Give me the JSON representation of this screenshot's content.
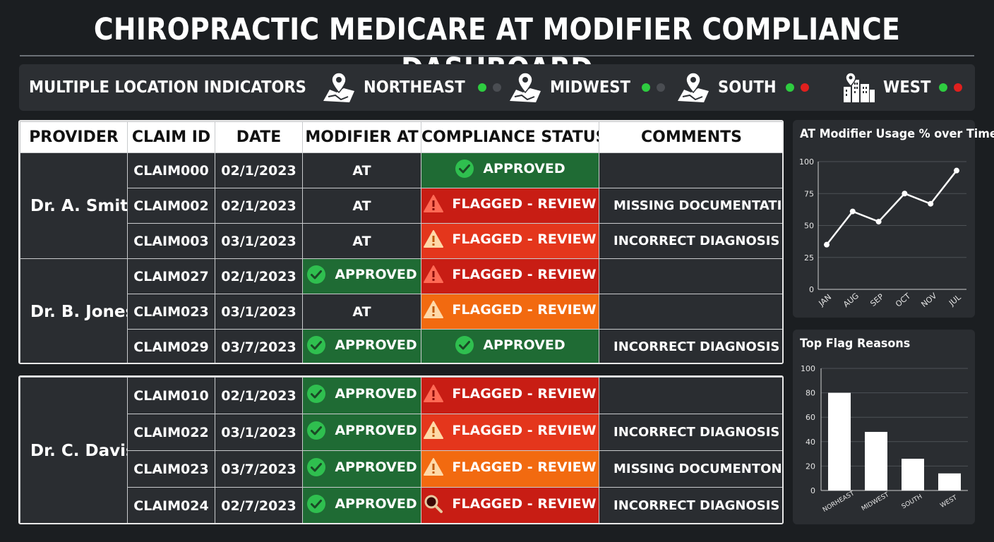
{
  "title": "CHIROPRACTIC MEDICARE AT MODIFIER COMPLIANCE DASHBOARD",
  "locations": {
    "label": "MULTIPLE LOCATION INDICATORS",
    "items": [
      {
        "name": "NORTHEAST",
        "icon": "map-pin-icon",
        "dots": [
          "#2ecc40",
          "#4a4d52"
        ]
      },
      {
        "name": "MIDWEST",
        "icon": "map-road-pin-icon",
        "dots": [
          "#2ecc40",
          "#4a4d52"
        ]
      },
      {
        "name": "SOUTH",
        "icon": "map-pin-icon",
        "dots": [
          "#2ecc40",
          "#e0201e"
        ]
      },
      {
        "name": "WEST",
        "icon": "city-buildings-icon",
        "dots": [
          "#2ecc40",
          "#e0201e"
        ]
      }
    ]
  },
  "table": {
    "headers": [
      "PROVIDER",
      "CLAIM ID",
      "DATE",
      "MODIFIER AT",
      "COMPLIANCE STATUS",
      "COMMENTS"
    ],
    "approved_label": "APPROVED",
    "flag_label": "FLAGGED - REVIEW",
    "groups": [
      {
        "provider": "Dr. A. Smith",
        "rows": [
          {
            "claim": "CLAIM000",
            "date": "02/1/2023",
            "modifier": "AT",
            "status": "approved",
            "comment": ""
          },
          {
            "claim": "CLAIM002",
            "date": "02/1/2023",
            "modifier": "AT",
            "status": "flag-red",
            "comment": "MISSING DOCUMENTATION"
          },
          {
            "claim": "CLAIM003",
            "date": "03/1/2023",
            "modifier": "AT",
            "status": "flag-redorange",
            "comment": "INCORRECT DIAGNOSIS CODE"
          }
        ]
      },
      {
        "provider": "Dr. B. Jones",
        "rows": [
          {
            "claim": "CLAIM027",
            "date": "02/1/2023",
            "modifier": "APPROVED",
            "status": "flag-red",
            "comment": ""
          },
          {
            "claim": "CLAIM023",
            "date": "03/1/2023",
            "modifier": "AT",
            "status": "flag-orange",
            "comment": ""
          },
          {
            "claim": "CLAIM029",
            "date": "03/7/2023",
            "modifier": "APPROVED",
            "status": "approved",
            "comment": "INCORRECT DIAGNOSIS CODE"
          }
        ]
      },
      {
        "provider": "Dr. C. Davis",
        "rows": [
          {
            "claim": "CLAIM010",
            "date": "02/1/2023",
            "modifier": "APPROVED",
            "status": "flag-red",
            "comment": ""
          },
          {
            "claim": "CLAIM022",
            "date": "03/1/2023",
            "modifier": "APPROVED",
            "status": "flag-redorange",
            "comment": "INCORRECT DIAGNOSIS CODE"
          },
          {
            "claim": "CLAIM023",
            "date": "03/7/2023",
            "modifier": "APPROVED",
            "status": "flag-orange",
            "comment": "MISSING DOCUMENTON"
          },
          {
            "claim": "CLAIM024",
            "date": "02/7/2023",
            "modifier": "APPROVED",
            "status": "flag-search",
            "comment": "INCORRECT DIAGNOSIS CODE"
          }
        ]
      }
    ]
  },
  "colors": {
    "approved": "#1f6b34",
    "flag_red": "#c81d14",
    "flag_orange": "#f26a10",
    "check_green": "#2fbf4f"
  },
  "chart_data": [
    {
      "type": "line",
      "title": "AT Modifier Usage % over Time",
      "categories": [
        "JAN",
        "AUG",
        "SEP",
        "OCT",
        "NOV",
        "JUL"
      ],
      "values": [
        35,
        61,
        53,
        75,
        67,
        93
      ],
      "ylim": [
        0,
        100
      ],
      "yticks": [
        0,
        25,
        50,
        75,
        100
      ],
      "grid": true
    },
    {
      "type": "bar",
      "title": "Top Flag Reasons",
      "categories": [
        "NORTHEAST",
        "MIDWEST",
        "SOUTH",
        "WEST"
      ],
      "category_labels": [
        "NORHEAST",
        "MIDWEST",
        "SOUTH",
        "WEST"
      ],
      "values": [
        80,
        48,
        26,
        14
      ],
      "ylim": [
        0,
        100
      ],
      "yticks": [
        0,
        20,
        40,
        60,
        80,
        100
      ],
      "grid": true
    }
  ]
}
